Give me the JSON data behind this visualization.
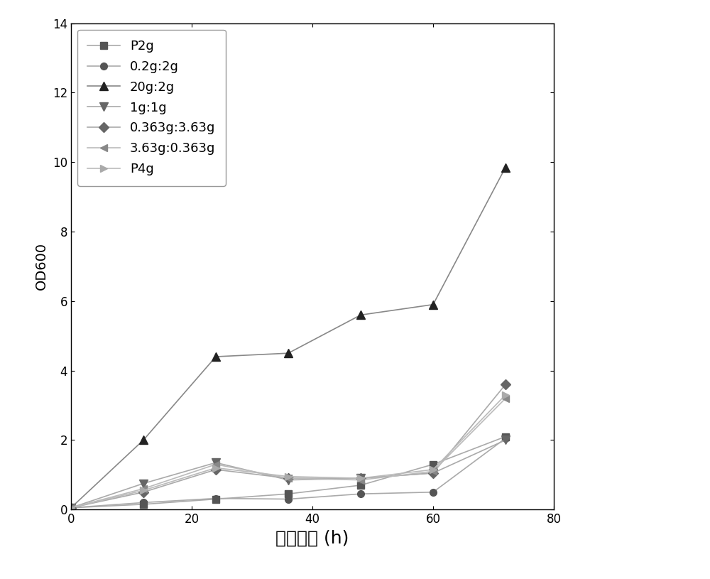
{
  "series": [
    {
      "label": "P2g",
      "x": [
        0,
        12,
        24,
        36,
        48,
        60,
        72
      ],
      "y": [
        0.05,
        0.15,
        0.3,
        0.45,
        0.7,
        1.3,
        2.1
      ],
      "color": "#555555",
      "marker": "s",
      "linestyle": "-",
      "markersize": 7,
      "linecolor": "#aaaaaa"
    },
    {
      "label": "0.2g:2g",
      "x": [
        0,
        12,
        24,
        36,
        48,
        60,
        72
      ],
      "y": [
        0.05,
        0.2,
        0.32,
        0.3,
        0.45,
        0.5,
        2.05
      ],
      "color": "#555555",
      "marker": "o",
      "linestyle": "-",
      "markersize": 7,
      "linecolor": "#aaaaaa"
    },
    {
      "label": "20g:2g",
      "x": [
        0,
        12,
        24,
        36,
        48,
        60,
        72
      ],
      "y": [
        0.05,
        2.0,
        4.4,
        4.5,
        5.6,
        5.9,
        9.85
      ],
      "color": "#222222",
      "marker": "^",
      "linestyle": "-",
      "markersize": 8,
      "linecolor": "#888888"
    },
    {
      "label": "1g:1g",
      "x": [
        0,
        12,
        24,
        36,
        48,
        60,
        72
      ],
      "y": [
        0.05,
        0.75,
        1.35,
        0.85,
        0.9,
        1.05,
        2.0
      ],
      "color": "#666666",
      "marker": "v",
      "linestyle": "-",
      "markersize": 8,
      "linecolor": "#aaaaaa"
    },
    {
      "label": "0.363g:3.63g",
      "x": [
        0,
        12,
        24,
        36,
        48,
        60,
        72
      ],
      "y": [
        0.05,
        0.5,
        1.15,
        0.9,
        0.9,
        1.05,
        3.6
      ],
      "color": "#666666",
      "marker": "D",
      "linestyle": "-",
      "markersize": 7,
      "linecolor": "#aaaaaa"
    },
    {
      "label": "3.63g:0.363g",
      "x": [
        0,
        12,
        24,
        36,
        48,
        60,
        72
      ],
      "y": [
        0.05,
        0.6,
        1.3,
        0.9,
        0.85,
        1.1,
        3.2
      ],
      "color": "#888888",
      "marker": "<",
      "linestyle": "-",
      "markersize": 7,
      "linecolor": "#bbbbbb"
    },
    {
      "label": "P4g",
      "x": [
        0,
        12,
        24,
        36,
        48,
        60,
        72
      ],
      "y": [
        0.05,
        0.55,
        1.2,
        0.95,
        0.9,
        1.15,
        3.3
      ],
      "color": "#aaaaaa",
      "marker": ">",
      "linestyle": "-",
      "markersize": 7,
      "linecolor": "#bbbbbb"
    }
  ],
  "xlabel": "发酵时间 (h)",
  "ylabel": "OD600",
  "xlim": [
    0,
    80
  ],
  "ylim": [
    0,
    14
  ],
  "yticks": [
    0,
    2,
    4,
    6,
    8,
    10,
    12,
    14
  ],
  "xticks": [
    0,
    20,
    40,
    60,
    80
  ],
  "title": "",
  "legend_loc": "upper left",
  "figsize": [
    10.0,
    8.15
  ],
  "dpi": 100,
  "background_color": "#ffffff"
}
